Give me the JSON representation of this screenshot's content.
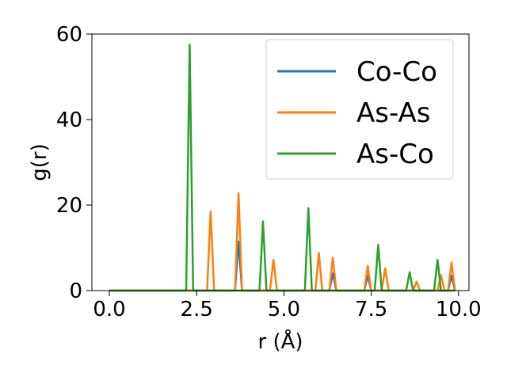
{
  "chart_data": {
    "type": "line",
    "title": "",
    "xlabel": "r (Å)",
    "ylabel": "g(r)",
    "xlim": [
      -0.5,
      10.3
    ],
    "ylim": [
      0,
      60
    ],
    "xticks": [
      0.0,
      2.5,
      5.0,
      7.5,
      10.0
    ],
    "xtick_labels": [
      "0.0",
      "2.5",
      "5.0",
      "7.5",
      "10.0"
    ],
    "yticks": [
      0,
      20,
      40,
      60
    ],
    "ytick_labels": [
      "0",
      "20",
      "40",
      "60"
    ],
    "grid": false,
    "legend_position": "upper right",
    "series": [
      {
        "name": "Co-Co",
        "color": "#1f77b4",
        "peaks": [
          [
            3.7,
            11.5
          ],
          [
            6.4,
            4.0
          ],
          [
            7.4,
            3.5
          ],
          [
            9.8,
            3.5
          ]
        ]
      },
      {
        "name": "As-As",
        "color": "#ff7f0e",
        "peaks": [
          [
            2.9,
            18.5
          ],
          [
            3.7,
            22.8
          ],
          [
            4.7,
            7.2
          ],
          [
            6.0,
            8.8
          ],
          [
            6.4,
            7.7
          ],
          [
            7.4,
            5.8
          ],
          [
            7.9,
            5.2
          ],
          [
            8.8,
            2.1
          ],
          [
            9.5,
            3.6
          ],
          [
            9.8,
            6.6
          ]
        ]
      },
      {
        "name": "As-Co",
        "color": "#2ca02c",
        "peaks": [
          [
            2.3,
            57.5
          ],
          [
            4.4,
            16.2
          ],
          [
            5.7,
            19.3
          ],
          [
            7.7,
            10.7
          ],
          [
            8.6,
            4.3
          ],
          [
            9.4,
            7.2
          ]
        ]
      }
    ]
  }
}
